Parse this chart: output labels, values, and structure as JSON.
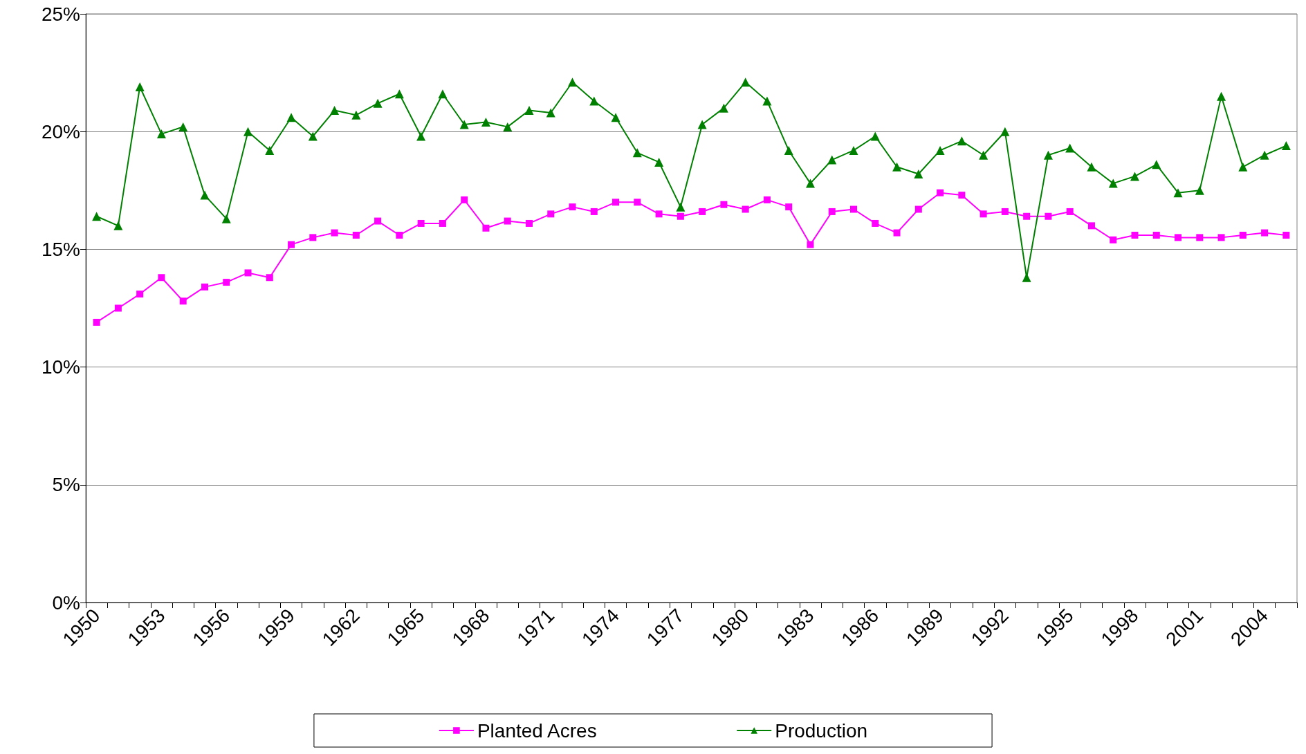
{
  "chart_data": {
    "type": "line",
    "categories": [
      "1950",
      null,
      null,
      "1953",
      null,
      null,
      "1956",
      null,
      null,
      "1959",
      null,
      null,
      "1962",
      null,
      null,
      "1965",
      null,
      null,
      "1968",
      null,
      null,
      "1971",
      null,
      null,
      "1974",
      null,
      null,
      "1977",
      null,
      null,
      "1980",
      null,
      null,
      "1983",
      null,
      null,
      "1986",
      null,
      null,
      "1989",
      null,
      null,
      "1992",
      null,
      null,
      "1995",
      null,
      null,
      "1998",
      null,
      null,
      "2001",
      null,
      null,
      "2004",
      null
    ],
    "series": [
      {
        "name": "Planted Acres",
        "color": "#ff00ff",
        "marker": "square",
        "values": [
          11.9,
          12.5,
          13.1,
          13.8,
          12.8,
          13.4,
          13.6,
          14.0,
          13.8,
          15.2,
          15.5,
          15.7,
          15.6,
          16.2,
          15.6,
          16.1,
          16.1,
          17.1,
          15.9,
          16.2,
          16.1,
          16.5,
          16.8,
          16.6,
          17.0,
          17.0,
          16.5,
          16.4,
          16.6,
          16.9,
          16.7,
          17.1,
          16.8,
          15.2,
          16.6,
          16.7,
          16.1,
          15.7,
          16.7,
          17.4,
          17.3,
          16.5,
          16.6,
          16.4,
          16.4,
          16.6,
          16.0,
          15.4,
          15.6,
          15.6,
          15.5,
          15.5,
          15.5,
          15.6,
          15.7,
          15.6
        ]
      },
      {
        "name": "Production",
        "color": "#008000",
        "marker": "triangle",
        "values": [
          16.4,
          16.0,
          21.9,
          19.9,
          20.2,
          17.3,
          16.3,
          20.0,
          19.2,
          20.6,
          19.8,
          20.9,
          20.7,
          21.2,
          21.6,
          19.8,
          21.6,
          20.3,
          20.4,
          20.2,
          20.9,
          20.8,
          22.1,
          21.3,
          20.6,
          19.1,
          18.7,
          16.8,
          20.3,
          21.0,
          22.1,
          21.3,
          19.2,
          17.8,
          18.8,
          19.2,
          19.8,
          18.5,
          18.2,
          19.2,
          19.6,
          19.0,
          20.0,
          13.8,
          19.0,
          19.3,
          18.5,
          17.8,
          18.1,
          18.6,
          17.4,
          17.5,
          21.5,
          18.5,
          19.0,
          19.4
        ]
      }
    ],
    "ylim": [
      0,
      25
    ],
    "yticks": [
      {
        "value": 0,
        "label": "0%"
      },
      {
        "value": 5,
        "label": "5%"
      },
      {
        "value": 10,
        "label": "10%"
      },
      {
        "value": 15,
        "label": "15%"
      },
      {
        "value": 20,
        "label": "20%"
      },
      {
        "value": 25,
        "label": "25%"
      }
    ],
    "grid": "y",
    "legend": "bottom",
    "line_style": "solid"
  }
}
